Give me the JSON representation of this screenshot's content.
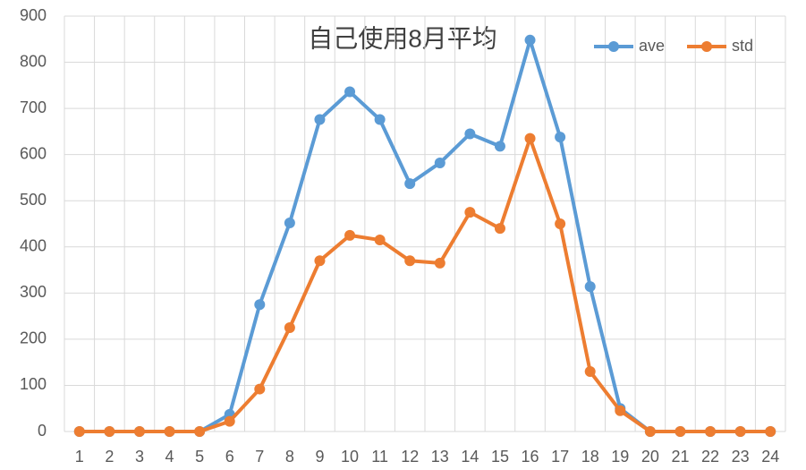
{
  "chart_data": {
    "type": "line",
    "title": "自己使用8月平均",
    "categories": [
      "1",
      "2",
      "3",
      "4",
      "5",
      "6",
      "7",
      "8",
      "9",
      "10",
      "11",
      "12",
      "13",
      "14",
      "15",
      "16",
      "17",
      "18",
      "19",
      "20",
      "21",
      "22",
      "23",
      "24"
    ],
    "series": [
      {
        "name": "ave",
        "color": "#5b9bd5",
        "values": [
          0,
          0,
          0,
          0,
          0,
          37,
          275,
          452,
          676,
          736,
          676,
          537,
          582,
          645,
          618,
          848,
          638,
          314,
          50,
          0,
          0,
          0,
          0,
          0
        ]
      },
      {
        "name": "std",
        "color": "#ed7d31",
        "values": [
          0,
          0,
          0,
          0,
          0,
          22,
          92,
          225,
          370,
          425,
          415,
          370,
          365,
          475,
          440,
          635,
          450,
          130,
          45,
          0,
          0,
          0,
          0,
          0
        ]
      }
    ],
    "ylim": [
      0,
      900
    ],
    "yticks": [
      0,
      100,
      200,
      300,
      400,
      500,
      600,
      700,
      800,
      900
    ],
    "grid": true,
    "legend": "top-right"
  }
}
